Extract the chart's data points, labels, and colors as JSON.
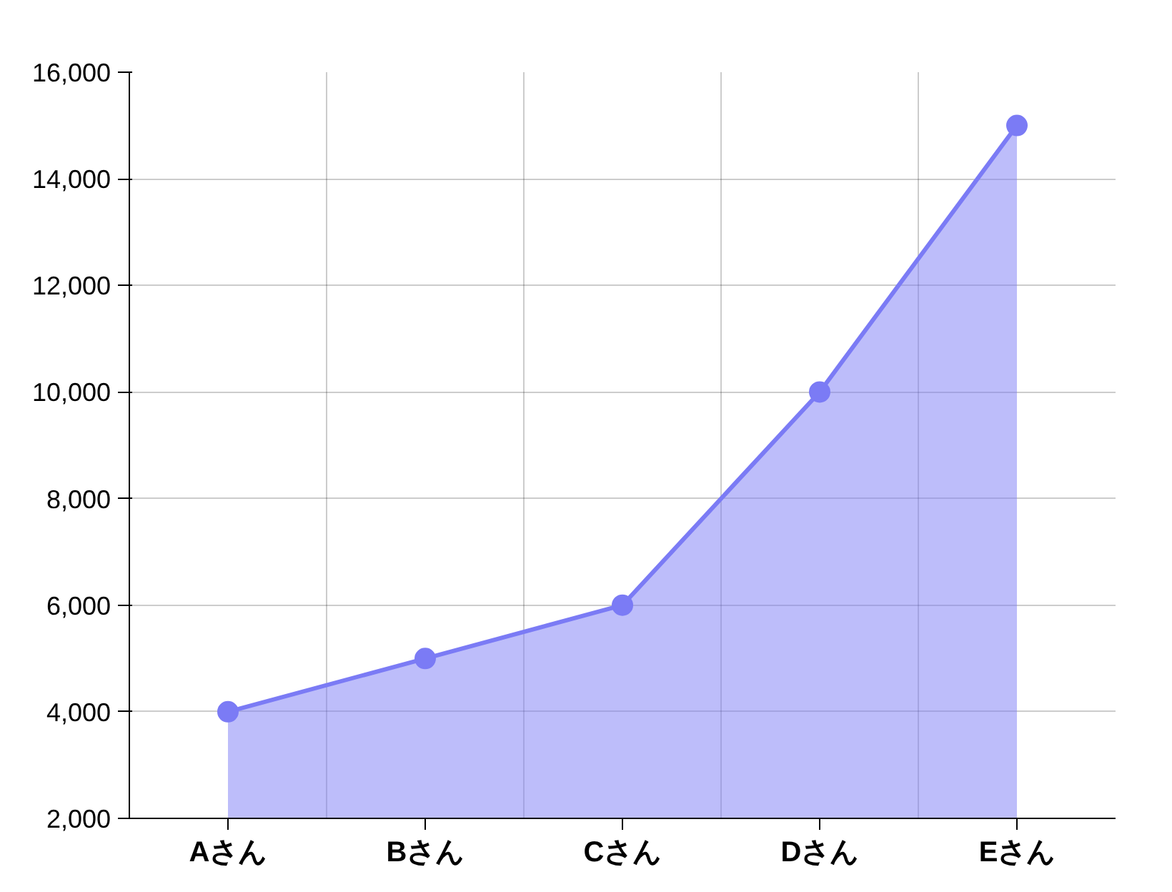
{
  "chart_data": {
    "type": "area",
    "categories": [
      "Aさん",
      "Bさん",
      "Cさん",
      "Dさん",
      "Eさん"
    ],
    "series": [
      {
        "color": "#7b7bf5",
        "values": [
          4000,
          5000,
          6000,
          10000,
          15000
        ]
      }
    ],
    "ylim": [
      2000,
      16000
    ],
    "yticks": [
      {
        "value": 2000,
        "label": "2,000"
      },
      {
        "value": 4000,
        "label": "4,000"
      },
      {
        "value": 6000,
        "label": "6,000"
      },
      {
        "value": 8000,
        "label": "8,000"
      },
      {
        "value": 10000,
        "label": "10,000"
      },
      {
        "value": 12000,
        "label": "12,000"
      },
      {
        "value": 14000,
        "label": "14,000"
      },
      {
        "value": 16000,
        "label": "16,000"
      }
    ],
    "grid": true,
    "marker": "circle",
    "line_style": "solid"
  }
}
